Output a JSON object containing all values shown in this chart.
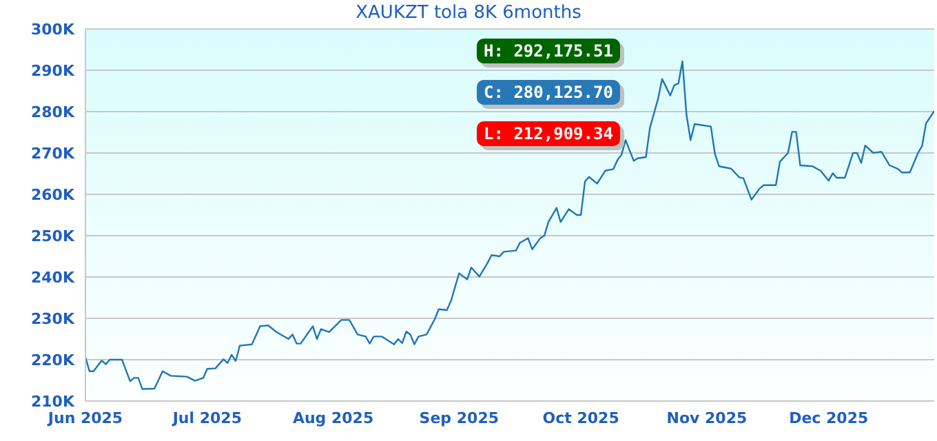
{
  "chart_data": {
    "type": "line",
    "title": "XAUKZT tola 8K 6months",
    "x": [
      "2025-06-01",
      "2025-06-02",
      "2025-06-03",
      "2025-06-05",
      "2025-06-06",
      "2025-06-07",
      "2025-06-10",
      "2025-06-12",
      "2025-06-13",
      "2025-06-14",
      "2025-06-15",
      "2025-06-18",
      "2025-06-20",
      "2025-06-22",
      "2025-06-26",
      "2025-06-28",
      "2025-06-30",
      "2025-07-01",
      "2025-07-03",
      "2025-07-05",
      "2025-07-06",
      "2025-07-07",
      "2025-07-08",
      "2025-07-09",
      "2025-07-12",
      "2025-07-14",
      "2025-07-16",
      "2025-07-18",
      "2025-07-21",
      "2025-07-22",
      "2025-07-23",
      "2025-07-24",
      "2025-07-26",
      "2025-07-27",
      "2025-07-28",
      "2025-07-29",
      "2025-07-31",
      "2025-08-03",
      "2025-08-05",
      "2025-08-07",
      "2025-08-09",
      "2025-08-10",
      "2025-08-11",
      "2025-08-13",
      "2025-08-16",
      "2025-08-17",
      "2025-08-18",
      "2025-08-19",
      "2025-08-20",
      "2025-08-21",
      "2025-08-22",
      "2025-08-24",
      "2025-08-26",
      "2025-08-27",
      "2025-08-29",
      "2025-08-30",
      "2025-09-01",
      "2025-09-03",
      "2025-09-04",
      "2025-09-06",
      "2025-09-08",
      "2025-09-09",
      "2025-09-11",
      "2025-09-12",
      "2025-09-15",
      "2025-09-16",
      "2025-09-18",
      "2025-09-19",
      "2025-09-21",
      "2025-09-22",
      "2025-09-23",
      "2025-09-25",
      "2025-09-26",
      "2025-09-28",
      "2025-09-30",
      "2025-10-01",
      "2025-10-02",
      "2025-10-03",
      "2025-10-05",
      "2025-10-07",
      "2025-10-09",
      "2025-10-10",
      "2025-10-11",
      "2025-10-12",
      "2025-10-14",
      "2025-10-15",
      "2025-10-17",
      "2025-10-18",
      "2025-10-20",
      "2025-10-21",
      "2025-10-23",
      "2025-10-24",
      "2025-10-25",
      "2025-10-26",
      "2025-10-27",
      "2025-10-28",
      "2025-10-29",
      "2025-11-02",
      "2025-11-03",
      "2025-11-04",
      "2025-11-07",
      "2025-11-09",
      "2025-11-10",
      "2025-11-12",
      "2025-11-14",
      "2025-11-15",
      "2025-11-18",
      "2025-11-19",
      "2025-11-21",
      "2025-11-22",
      "2025-11-23",
      "2025-11-24",
      "2025-11-27",
      "2025-11-29",
      "2025-12-01",
      "2025-12-02",
      "2025-12-03",
      "2025-12-05",
      "2025-12-07",
      "2025-12-08",
      "2025-12-09",
      "2025-12-10",
      "2025-12-12",
      "2025-12-14",
      "2025-12-16",
      "2025-12-18",
      "2025-12-19",
      "2025-12-21",
      "2025-12-23",
      "2025-12-24",
      "2025-12-25",
      "2025-12-27"
    ],
    "series": [
      {
        "color": "#1f77b4",
        "values": [
          220600,
          217200,
          217200,
          219800,
          218900,
          220000,
          220000,
          214800,
          215600,
          215600,
          212909.34,
          213000,
          217200,
          216100,
          215900,
          214900,
          215600,
          217800,
          217900,
          220100,
          219200,
          221200,
          219700,
          223400,
          223700,
          228100,
          228300,
          226700,
          225000,
          226100,
          223900,
          223900,
          226700,
          228100,
          225000,
          227400,
          226700,
          229600,
          229600,
          226100,
          225600,
          223900,
          225600,
          225600,
          223700,
          225000,
          224000,
          226800,
          226100,
          223700,
          225600,
          226100,
          229800,
          232200,
          232000,
          234200,
          240900,
          239400,
          242300,
          240100,
          243400,
          245300,
          245000,
          246100,
          246400,
          248300,
          249400,
          246700,
          249400,
          250000,
          253300,
          256700,
          253300,
          256400,
          255000,
          255000,
          263100,
          264200,
          262600,
          265700,
          266100,
          268300,
          269600,
          273100,
          268100,
          268700,
          269000,
          276100,
          283100,
          287900,
          283900,
          286400,
          286800,
          292175.51,
          279200,
          273100,
          277000,
          276400,
          269800,
          266800,
          266200,
          264100,
          263900,
          258700,
          261400,
          262200,
          262200,
          267900,
          270000,
          275100,
          275100,
          267000,
          266800,
          265700,
          263300,
          265100,
          264000,
          264000,
          270000,
          270000,
          267600,
          271800,
          270000,
          270300,
          267000,
          266200,
          265300,
          265300,
          270000,
          271700,
          277200,
          280125.7
        ]
      }
    ],
    "xlim": [
      "2025-06-01",
      "2025-12-27"
    ],
    "xticks": [
      {
        "value": "2025-06-01",
        "label": "Jun 2025"
      },
      {
        "value": "2025-07-01",
        "label": "Jul 2025"
      },
      {
        "value": "2025-08-01",
        "label": "Aug 2025"
      },
      {
        "value": "2025-09-01",
        "label": "Sep 2025"
      },
      {
        "value": "2025-10-01",
        "label": "Oct 2025"
      },
      {
        "value": "2025-11-01",
        "label": "Nov 2025"
      },
      {
        "value": "2025-12-01",
        "label": "Dec 2025"
      }
    ],
    "ylim": [
      210000,
      300000
    ],
    "yticks": [
      {
        "value": 210000,
        "label": "210K"
      },
      {
        "value": 220000,
        "label": "220K"
      },
      {
        "value": 230000,
        "label": "230K"
      },
      {
        "value": 240000,
        "label": "240K"
      },
      {
        "value": 250000,
        "label": "250K"
      },
      {
        "value": 260000,
        "label": "260K"
      },
      {
        "value": 270000,
        "label": "270K"
      },
      {
        "value": 280000,
        "label": "280K"
      },
      {
        "value": 290000,
        "label": "290K"
      },
      {
        "value": 300000,
        "label": "300K"
      }
    ],
    "grid": "y",
    "annotations": [
      "H: 292,175.51",
      "C: 280,125.70",
      "L: 212,909.34"
    ]
  }
}
